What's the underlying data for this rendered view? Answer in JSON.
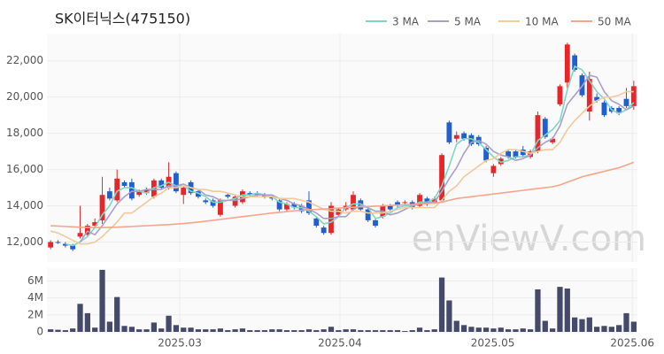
{
  "chart_data": [
    {
      "type": "candlestick",
      "title": "SK이터닉스(475150)",
      "watermark": "enViewV.com",
      "up_color": "#e8262a",
      "down_color": "#1f5fcf",
      "xlim": [
        -0.5,
        79.5
      ],
      "xticks": [
        {
          "value": 17.5,
          "label": "2025.03"
        },
        {
          "value": 39.2,
          "label": "2025.04"
        },
        {
          "value": 59.9,
          "label": "2025.05"
        },
        {
          "value": 78.8,
          "label": "2025.06"
        }
      ],
      "ylim": [
        10900,
        23500
      ],
      "yticks": [
        {
          "value": 12000,
          "label": "12,000"
        },
        {
          "value": 14000,
          "label": "14,000"
        },
        {
          "value": 16000,
          "label": "16,000"
        },
        {
          "value": 18000,
          "label": "18,000"
        },
        {
          "value": 20000,
          "label": "20,000"
        },
        {
          "value": 22000,
          "label": "22,000"
        }
      ],
      "grid": true,
      "legend": "top-right",
      "open": [
        11700,
        12000,
        11900,
        11800,
        12300,
        12400,
        12900,
        13200,
        14800,
        14300,
        15300,
        15300,
        14600,
        14700,
        14500,
        15400,
        15000,
        15800,
        14600,
        15300,
        14800,
        14300,
        14300,
        13500,
        14600,
        14000,
        14200,
        14700,
        14700,
        14600,
        14500,
        14300,
        13800,
        14100,
        14000,
        14300,
        13300,
        12800,
        12500,
        13500,
        13800,
        13800,
        14300,
        13800,
        13200,
        13400,
        14000,
        14200,
        14200,
        14200,
        14000,
        14400,
        14200,
        14300,
        18600,
        17700,
        18000,
        17900,
        17800,
        17200,
        15800,
        16300,
        17000,
        17000,
        17100,
        16700,
        17000,
        18800,
        17500,
        19600,
        20800,
        22300,
        21200,
        19200,
        20000,
        19700,
        19400,
        19400,
        19900,
        19500
      ],
      "high": [
        12100,
        12100,
        12000,
        11900,
        14000,
        13000,
        13300,
        15600,
        15000,
        16000,
        15400,
        15500,
        14900,
        15000,
        15500,
        15500,
        16400,
        15900,
        15100,
        15400,
        14900,
        14400,
        14400,
        14400,
        14700,
        14600,
        14900,
        14800,
        14800,
        14700,
        14600,
        14400,
        14200,
        14200,
        14100,
        14800,
        13400,
        12900,
        14200,
        13900,
        14200,
        14800,
        14400,
        13900,
        13300,
        14100,
        14100,
        14300,
        14300,
        14300,
        14700,
        14500,
        14500,
        16900,
        18700,
        18100,
        18100,
        18000,
        17900,
        17300,
        16300,
        16700,
        17100,
        17100,
        17300,
        17100,
        19200,
        18900,
        17800,
        20700,
        23000,
        22400,
        21300,
        21400,
        20200,
        19800,
        19500,
        19500,
        20500,
        20900
      ],
      "low": [
        11600,
        11900,
        11700,
        11500,
        12200,
        12300,
        12800,
        13000,
        14300,
        14200,
        15000,
        14300,
        14500,
        14600,
        14400,
        14900,
        14900,
        14700,
        14100,
        14600,
        14400,
        14100,
        13900,
        13400,
        14400,
        13900,
        14100,
        14500,
        14500,
        14400,
        14300,
        13700,
        13700,
        13800,
        13600,
        13500,
        12800,
        12400,
        12400,
        13400,
        13700,
        13700,
        13700,
        13100,
        12800,
        13300,
        13700,
        13900,
        14100,
        13800,
        13900,
        14000,
        14100,
        14200,
        17400,
        17500,
        17600,
        17300,
        17300,
        16400,
        15600,
        16200,
        16600,
        16600,
        16700,
        16600,
        16900,
        17700,
        17400,
        19500,
        20500,
        21400,
        20000,
        18700,
        19700,
        18900,
        19100,
        19000,
        19400,
        19300
      ],
      "close": [
        12000,
        11950,
        11800,
        11600,
        12500,
        12900,
        13100,
        14600,
        14400,
        15500,
        15100,
        14400,
        14800,
        14900,
        15400,
        15000,
        15600,
        14800,
        15000,
        14700,
        14500,
        14200,
        14000,
        14300,
        14500,
        14500,
        14800,
        14600,
        14600,
        14500,
        14400,
        13800,
        14100,
        13900,
        13700,
        13600,
        12900,
        12500,
        14000,
        13800,
        14000,
        14600,
        13800,
        13200,
        12900,
        14000,
        13800,
        14000,
        14200,
        13900,
        14600,
        14100,
        14400,
        16800,
        17500,
        17900,
        17700,
        17400,
        17400,
        16500,
        16200,
        16600,
        16700,
        16700,
        16800,
        17000,
        19000,
        17800,
        17700,
        20600,
        22900,
        21500,
        20100,
        21000,
        19800,
        19000,
        19200,
        19100,
        19500,
        20600
      ],
      "series": [
        {
          "name": "3 MA",
          "color": "#7fd6c4",
          "values": [
            null,
            null,
            11900,
            11800,
            12000,
            12300,
            12800,
            13500,
            14000,
            14800,
            15000,
            15000,
            14800,
            14700,
            15000,
            15100,
            15300,
            15100,
            15100,
            14800,
            14700,
            14500,
            14200,
            14200,
            14300,
            14400,
            14600,
            14600,
            14700,
            14600,
            14500,
            14200,
            14100,
            13900,
            13900,
            13700,
            13400,
            13000,
            13100,
            13400,
            13900,
            14100,
            14100,
            13900,
            13300,
            13400,
            13600,
            13900,
            14000,
            14000,
            14200,
            14200,
            14400,
            15100,
            16200,
            17400,
            17700,
            17700,
            17500,
            17100,
            16700,
            16400,
            16500,
            16700,
            16700,
            16800,
            17600,
            17900,
            18200,
            18700,
            20400,
            21700,
            21500,
            20900,
            20300,
            19900,
            19300,
            19100,
            19300,
            19700
          ]
        },
        {
          "name": "5 MA",
          "color": "#a9a0c8",
          "values": [
            null,
            null,
            null,
            null,
            12000,
            12600,
            12400,
            12900,
            13500,
            14100,
            14500,
            14800,
            14800,
            14900,
            14900,
            14900,
            15100,
            15100,
            15200,
            15000,
            14900,
            14600,
            14500,
            14300,
            14300,
            14300,
            14400,
            14500,
            14600,
            14600,
            14600,
            14400,
            14300,
            14100,
            14000,
            13800,
            13600,
            13300,
            13300,
            13400,
            13400,
            13800,
            14000,
            13900,
            13700,
            13700,
            13500,
            13600,
            13800,
            14000,
            14100,
            14200,
            14200,
            14800,
            15500,
            16100,
            16900,
            17500,
            17600,
            17400,
            17000,
            16800,
            16700,
            16500,
            16600,
            16800,
            17200,
            17500,
            17700,
            18400,
            19600,
            20100,
            20600,
            21200,
            21100,
            20300,
            19800,
            19600,
            19300,
            19500
          ]
        },
        {
          "name": "10 MA",
          "color": "#f2c99a",
          "values": [
            12600,
            12500,
            12300,
            12100,
            11900,
            11900,
            12000,
            12300,
            12700,
            13100,
            13600,
            13600,
            13900,
            14200,
            14500,
            14700,
            15000,
            15000,
            15100,
            15000,
            14900,
            14900,
            14800,
            14800,
            14700,
            14600,
            14500,
            14500,
            14500,
            14500,
            14500,
            14400,
            14400,
            14400,
            14300,
            14200,
            14000,
            13800,
            13700,
            13700,
            13600,
            13700,
            13700,
            13600,
            13600,
            13600,
            13700,
            13800,
            13900,
            13900,
            13900,
            13900,
            13900,
            14300,
            14800,
            15100,
            15600,
            15900,
            16200,
            16500,
            16600,
            16900,
            17100,
            17100,
            17000,
            16900,
            17000,
            17100,
            17100,
            17500,
            18200,
            18700,
            19100,
            19500,
            19800,
            20000,
            20000,
            20100,
            20300,
            20300
          ]
        },
        {
          "name": "50 MA",
          "color": "#f4a58c",
          "values": [
            12900,
            12880,
            12860,
            12840,
            12820,
            12800,
            12800,
            12800,
            12810,
            12820,
            12840,
            12860,
            12880,
            12900,
            12920,
            12940,
            12960,
            12990,
            13020,
            13060,
            13100,
            13150,
            13200,
            13250,
            13300,
            13350,
            13400,
            13450,
            13500,
            13550,
            13600,
            13640,
            13680,
            13720,
            13760,
            13790,
            13800,
            13820,
            13840,
            13870,
            13900,
            13920,
            13940,
            13960,
            13980,
            14000,
            14020,
            14040,
            14060,
            14080,
            14100,
            14120,
            14150,
            14200,
            14300,
            14400,
            14450,
            14500,
            14550,
            14600,
            14650,
            14700,
            14750,
            14800,
            14850,
            14900,
            14950,
            15000,
            15050,
            15150,
            15300,
            15450,
            15600,
            15700,
            15800,
            15900,
            16000,
            16100,
            16250,
            16400
          ]
        }
      ]
    },
    {
      "type": "bar",
      "color": "#454a6b",
      "xlim": [
        -0.5,
        79.5
      ],
      "ylim": [
        0,
        7500000
      ],
      "yticks": [
        0,
        {
          "value": 2000000,
          "label": "2M"
        },
        {
          "value": 4000000,
          "label": "4M"
        },
        {
          "value": 6000000,
          "label": "6M"
        }
      ],
      "grid": true,
      "values": [
        300000,
        250000,
        200000,
        400000,
        3300000,
        2200000,
        500000,
        7300000,
        1200000,
        4100000,
        700000,
        600000,
        300000,
        300000,
        1100000,
        400000,
        1900000,
        800000,
        500000,
        500000,
        300000,
        300000,
        300000,
        400000,
        200000,
        300000,
        400000,
        200000,
        200000,
        200000,
        300000,
        300000,
        200000,
        200000,
        200000,
        300000,
        200000,
        300000,
        600000,
        200000,
        300000,
        300000,
        200000,
        200000,
        200000,
        200000,
        200000,
        200000,
        100000,
        200000,
        500000,
        200000,
        300000,
        6400000,
        3700000,
        1300000,
        800000,
        600000,
        500000,
        500000,
        400000,
        500000,
        300000,
        300000,
        400000,
        300000,
        5000000,
        1300000,
        400000,
        5300000,
        5100000,
        1700000,
        1500000,
        1700000,
        600000,
        700000,
        600000,
        800000,
        2200000,
        1200000
      ]
    }
  ]
}
